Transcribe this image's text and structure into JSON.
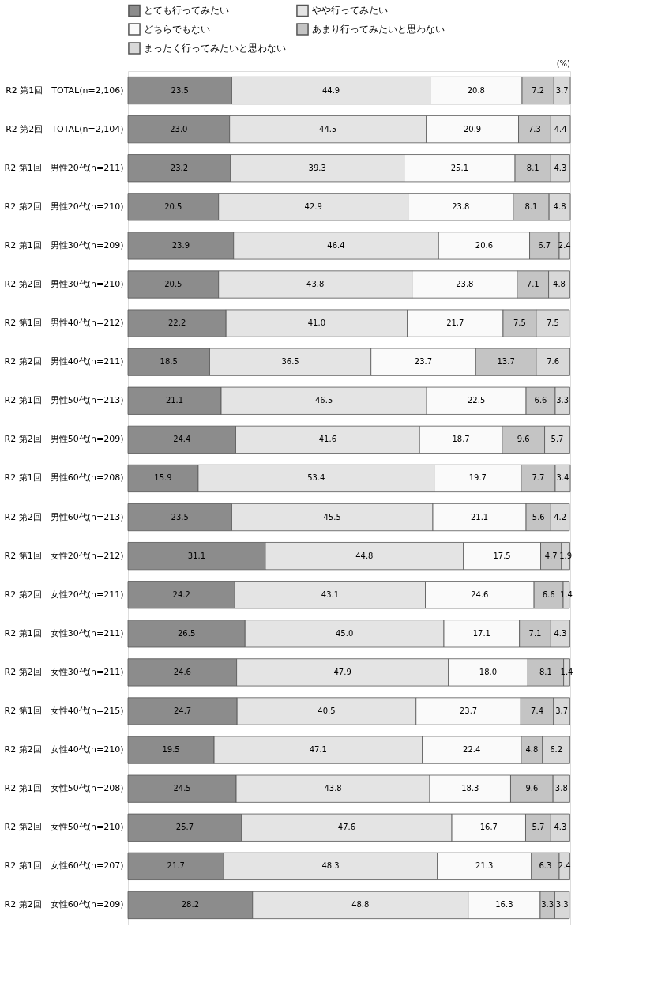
{
  "chart_data": {
    "type": "bar",
    "orientation": "horizontal",
    "stacked": true,
    "legend": "top",
    "grid": false,
    "tick_labels": "y",
    "annotations": [
      "(%)"
    ],
    "categories": [
      "R2 第1回　TOTAL(n=2,106)",
      "R2 第2回　TOTAL(n=2,104)",
      "R2 第1回　男性20代(n=211)",
      "R2 第2回　男性20代(n=210)",
      "R2 第1回　男性30代(n=209)",
      "R2 第2回　男性30代(n=210)",
      "R2 第1回　男性40代(n=212)",
      "R2 第2回　男性40代(n=211)",
      "R2 第1回　男性50代(n=213)",
      "R2 第2回　男性50代(n=209)",
      "R2 第1回　男性60代(n=208)",
      "R2 第2回　男性60代(n=213)",
      "R2 第1回　女性20代(n=212)",
      "R2 第2回　女性20代(n=211)",
      "R2 第1回　女性30代(n=211)",
      "R2 第2回　女性30代(n=211)",
      "R2 第1回　女性40代(n=215)",
      "R2 第2回　女性40代(n=210)",
      "R2 第1回　女性50代(n=208)",
      "R2 第2回　女性50代(n=210)",
      "R2 第1回　女性60代(n=207)",
      "R2 第2回　女性60代(n=209)"
    ],
    "series": [
      {
        "name": "とても行ってみたい",
        "color": "#8c8c8c",
        "values": [
          23.5,
          23.0,
          23.2,
          20.5,
          23.9,
          20.5,
          22.2,
          18.5,
          21.1,
          24.4,
          15.9,
          23.5,
          31.1,
          24.2,
          26.5,
          24.6,
          24.7,
          19.5,
          24.5,
          25.7,
          21.7,
          28.2
        ],
        "value_labels": [
          "23.5",
          "23.0",
          "23.2",
          "20.5",
          "23.9",
          "20.5",
          "22.2",
          "18.5",
          "21.1",
          "24.4",
          "15.9",
          "23.5",
          "31.1",
          "24.2",
          "26.5",
          "24.6",
          "24.7",
          "19.5",
          "24.5",
          "25.7",
          "21.7",
          "28.2"
        ]
      },
      {
        "name": "やや行ってみたい",
        "color": "#e4e4e4",
        "values": [
          44.9,
          44.5,
          39.3,
          42.9,
          46.4,
          43.8,
          41.0,
          36.5,
          46.5,
          41.6,
          53.4,
          45.5,
          44.8,
          43.1,
          45.0,
          47.9,
          40.5,
          47.1,
          43.8,
          47.6,
          48.3,
          48.8
        ],
        "value_labels": [
          "44.9",
          "44.5",
          "39.3",
          "42.9",
          "46.4",
          "43.8",
          "41.0",
          "36.5",
          "46.5",
          "41.6",
          "53.4",
          "45.5",
          "44.8",
          "43.1",
          "45.0",
          "47.9",
          "40.5",
          "47.1",
          "43.8",
          "47.6",
          "48.3",
          "48.8"
        ]
      },
      {
        "name": "どちらでもない",
        "color": "#fafafa",
        "values": [
          20.8,
          20.9,
          25.1,
          23.8,
          20.6,
          23.8,
          21.7,
          23.7,
          22.5,
          18.7,
          19.7,
          21.1,
          17.5,
          24.6,
          17.1,
          18.0,
          23.7,
          22.4,
          18.3,
          16.7,
          21.3,
          16.3
        ],
        "value_labels": [
          "20.8",
          "20.9",
          "25.1",
          "23.8",
          "20.6",
          "23.8",
          "21.7",
          "23.7",
          "22.5",
          "18.7",
          "19.7",
          "21.1",
          "17.5",
          "24.6",
          "17.1",
          "18.0",
          "23.7",
          "22.4",
          "18.3",
          "16.7",
          "21.3",
          "16.3"
        ]
      },
      {
        "name": "あまり行ってみたいと思わない",
        "color": "#c4c4c4",
        "values": [
          7.2,
          7.3,
          8.1,
          8.1,
          6.7,
          7.1,
          7.5,
          13.7,
          6.6,
          9.6,
          7.7,
          5.6,
          4.7,
          6.6,
          7.1,
          8.1,
          7.4,
          4.8,
          9.6,
          5.7,
          6.3,
          3.3
        ],
        "value_labels": [
          "7.2",
          "7.3",
          "8.1",
          "8.1",
          "6.7",
          "7.1",
          "7.5",
          "13.7",
          "6.6",
          "9.6",
          "7.7",
          "5.6",
          "4.7",
          "6.6",
          "7.1",
          "8.1",
          "7.4",
          "4.8",
          "9.6",
          "5.7",
          "6.3",
          "3.3"
        ]
      },
      {
        "name": "まったく行ってみたいと思わない",
        "color": "#d8d8d8",
        "values": [
          3.7,
          4.4,
          4.3,
          4.8,
          2.4,
          4.8,
          7.5,
          7.6,
          3.3,
          5.7,
          3.4,
          4.2,
          1.9,
          1.4,
          4.3,
          1.4,
          3.7,
          6.2,
          3.8,
          4.3,
          2.4,
          3.3
        ],
        "value_labels": [
          "3.7",
          "4.4",
          "4.3",
          "4.8",
          "2.4",
          "4.8",
          "7.5",
          "7.6",
          "3.3",
          "5.7",
          "3.4",
          "4.2",
          "1.9",
          "1.4",
          "4.3",
          "1.4",
          "3.7",
          "6.2",
          "3.8",
          "4.3",
          "2.4",
          "3.3"
        ]
      }
    ]
  }
}
